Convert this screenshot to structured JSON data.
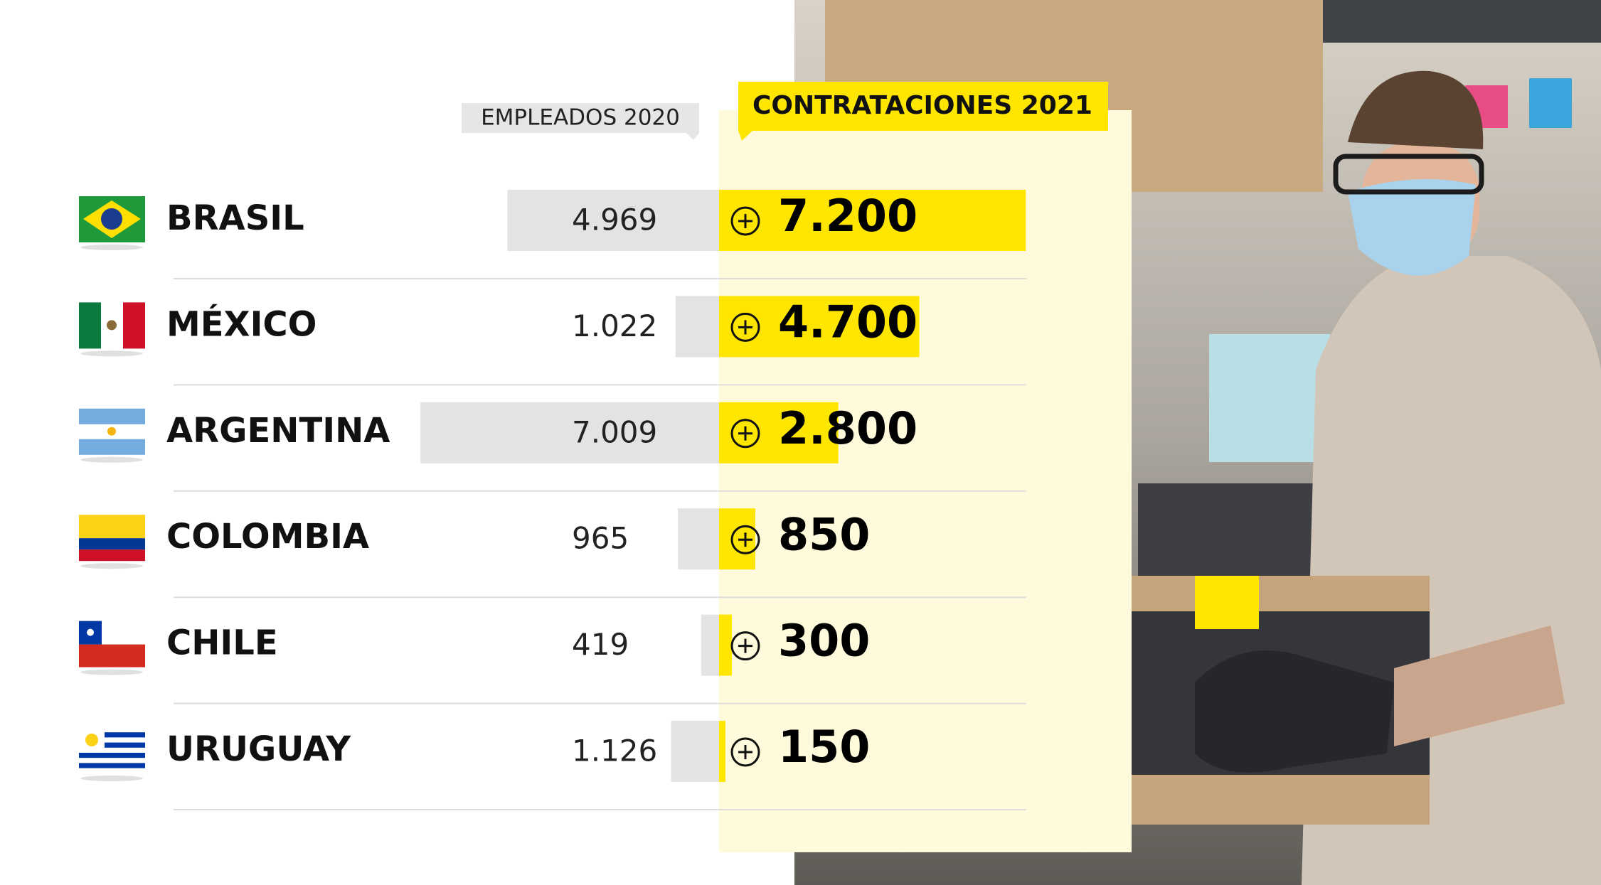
{
  "chart_data": {
    "type": "bar",
    "categories": [
      "BRASIL",
      "MÉXICO",
      "ARGENTINA",
      "COLOMBIA",
      "CHILE",
      "URUGUAY"
    ],
    "series": [
      {
        "name": "EMPLEADOS 2020",
        "color": "#e3e3e3",
        "values": [
          4969,
          1022,
          7009,
          965,
          419,
          1126
        ],
        "value_labels": [
          "4.969",
          "1.022",
          "7.009",
          "965",
          "419",
          "1.126"
        ]
      },
      {
        "name": "CONTRATACIONES 2021",
        "color": "#ffe600",
        "values": [
          7200,
          4700,
          2800,
          850,
          300,
          150
        ],
        "value_labels": [
          "7.200",
          "4.700",
          "2.800",
          "850",
          "300",
          "150"
        ]
      }
    ]
  }
}
